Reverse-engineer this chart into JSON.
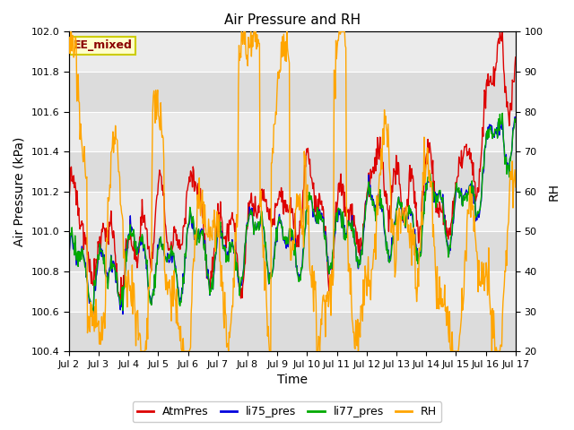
{
  "title": "Air Pressure and RH",
  "xlabel": "Time",
  "ylabel_left": "Air Pressure (kPa)",
  "ylabel_right": "RH",
  "ylim_left": [
    100.4,
    102.0
  ],
  "ylim_right": [
    20,
    100
  ],
  "yticks_left": [
    100.4,
    100.6,
    100.8,
    101.0,
    101.2,
    101.4,
    101.6,
    101.8,
    102.0
  ],
  "yticks_right": [
    20,
    30,
    40,
    50,
    60,
    70,
    80,
    90,
    100
  ],
  "xtick_labels": [
    "Jul 2",
    "Jul 3",
    "Jul 4",
    "Jul 5",
    "Jul 6",
    "Jul 7",
    "Jul 8",
    "Jul 9",
    "Jul 10",
    "Jul 11",
    "Jul 12",
    "Jul 13",
    "Jul 14",
    "Jul 15",
    "Jul 16",
    "Jul 17"
  ],
  "annotation_text": "EE_mixed",
  "annotation_color": "#8B0000",
  "annotation_bg": "#FFFFCC",
  "annotation_border": "#CCCC00",
  "line_colors": {
    "AtmPres": "#DD0000",
    "li75_pres": "#0000DD",
    "li77_pres": "#00AA00",
    "RH": "#FFA500"
  },
  "line_widths": {
    "AtmPres": 1.0,
    "li75_pres": 1.0,
    "li77_pres": 1.0,
    "RH": 1.0
  },
  "bg_light": "#EBEBEB",
  "bg_dark": "#DCDCDC",
  "n_points": 720
}
